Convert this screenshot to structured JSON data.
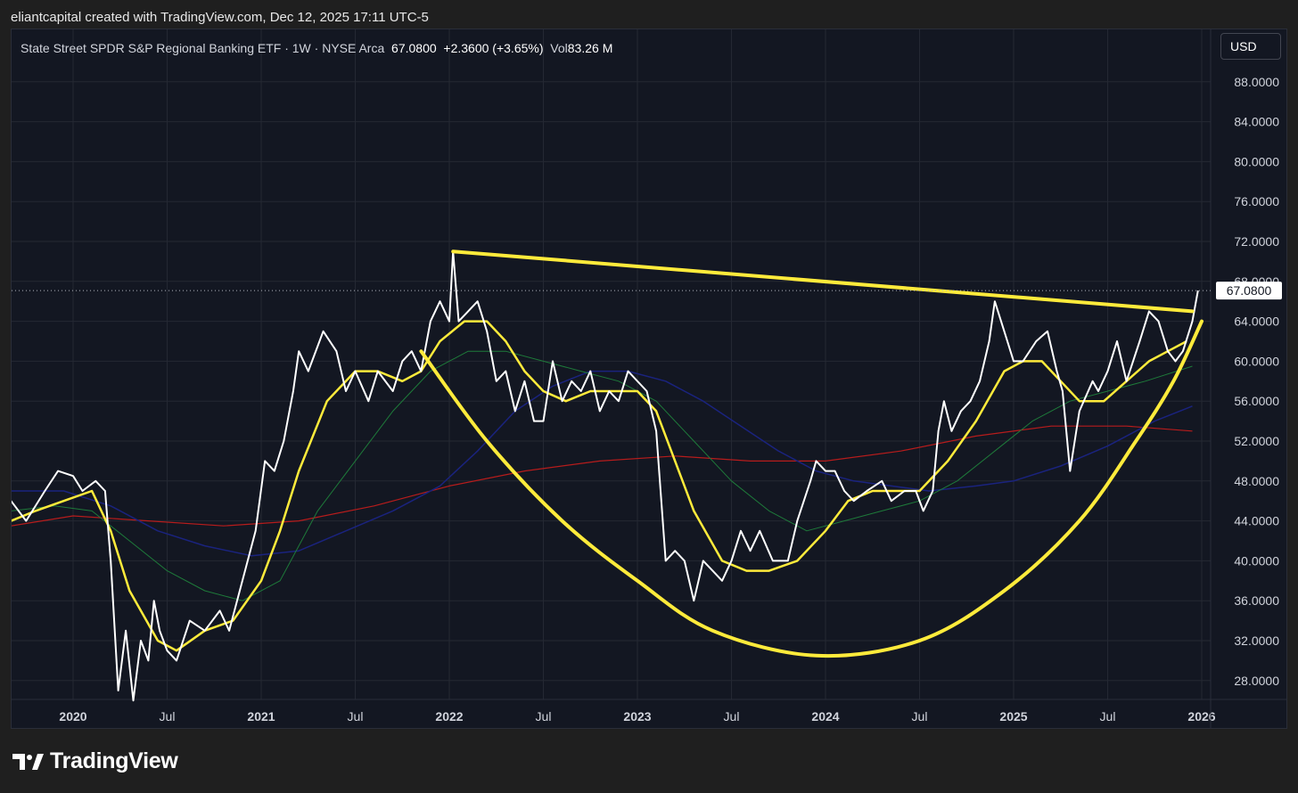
{
  "header": {
    "credit": "eliantcapital created with TradingView.com, Dec 12, 2025 17:11 UTC-5"
  },
  "legend": {
    "symbol": "State Street SPDR S&P Regional Banking ETF · 1W · NYSE Arca",
    "close": "67.0800",
    "change": "+2.3600 (+3.65%)",
    "vol_label": "Vol",
    "vol_value": "83.26 M"
  },
  "toolbar": {
    "currency": "USD"
  },
  "brand": {
    "name": "TradingView",
    "logo_icon": "tradingview-logo-icon"
  },
  "chart_data": {
    "type": "line",
    "title": "State Street SPDR S&P Regional Banking ETF · 1W · NYSE Arca",
    "current_price": 67.08,
    "current_price_label": "67.0800",
    "x_range": [
      "2019-09",
      "2025-12"
    ],
    "y_range": [
      25,
      90
    ],
    "y_ticks": [
      {
        "value": 28,
        "label": "28.0000"
      },
      {
        "value": 32,
        "label": "32.0000"
      },
      {
        "value": 36,
        "label": "36.0000"
      },
      {
        "value": 40,
        "label": "40.0000"
      },
      {
        "value": 44,
        "label": "44.0000"
      },
      {
        "value": 48,
        "label": "48.0000"
      },
      {
        "value": 52,
        "label": "52.0000"
      },
      {
        "value": 56,
        "label": "56.0000"
      },
      {
        "value": 60,
        "label": "60.0000"
      },
      {
        "value": 64,
        "label": "64.0000"
      },
      {
        "value": 68,
        "label": "68.0000"
      },
      {
        "value": 72,
        "label": "72.0000"
      },
      {
        "value": 76,
        "label": "76.0000"
      },
      {
        "value": 80,
        "label": "80.0000"
      },
      {
        "value": 84,
        "label": "84.0000"
      },
      {
        "value": 88,
        "label": "88.0000"
      }
    ],
    "x_ticks": [
      {
        "t": 2020.0,
        "label": "2020",
        "major": true
      },
      {
        "t": 2020.5,
        "label": "Jul",
        "major": false
      },
      {
        "t": 2021.0,
        "label": "2021",
        "major": true
      },
      {
        "t": 2021.5,
        "label": "Jul",
        "major": false
      },
      {
        "t": 2022.0,
        "label": "2022",
        "major": true
      },
      {
        "t": 2022.5,
        "label": "Jul",
        "major": false
      },
      {
        "t": 2023.0,
        "label": "2023",
        "major": true
      },
      {
        "t": 2023.5,
        "label": "Jul",
        "major": false
      },
      {
        "t": 2024.0,
        "label": "2024",
        "major": true
      },
      {
        "t": 2024.5,
        "label": "Jul",
        "major": false
      },
      {
        "t": 2025.0,
        "label": "2025",
        "major": true
      },
      {
        "t": 2025.5,
        "label": "Jul",
        "major": false
      },
      {
        "t": 2026.0,
        "label": "2026",
        "major": true
      }
    ],
    "grid": true,
    "series": [
      {
        "color": "#ffffff",
        "points": [
          [
            2019.67,
            46
          ],
          [
            2019.75,
            44
          ],
          [
            2019.85,
            47
          ],
          [
            2019.92,
            49
          ],
          [
            2020.0,
            48.5
          ],
          [
            2020.05,
            47
          ],
          [
            2020.12,
            48
          ],
          [
            2020.17,
            47
          ],
          [
            2020.2,
            40
          ],
          [
            2020.24,
            27
          ],
          [
            2020.28,
            33
          ],
          [
            2020.32,
            26
          ],
          [
            2020.36,
            32
          ],
          [
            2020.4,
            30
          ],
          [
            2020.43,
            36
          ],
          [
            2020.46,
            33
          ],
          [
            2020.5,
            31
          ],
          [
            2020.55,
            30
          ],
          [
            2020.62,
            34
          ],
          [
            2020.7,
            33
          ],
          [
            2020.78,
            35
          ],
          [
            2020.83,
            33
          ],
          [
            2020.9,
            38
          ],
          [
            2020.97,
            43
          ],
          [
            2021.02,
            50
          ],
          [
            2021.07,
            49
          ],
          [
            2021.12,
            52
          ],
          [
            2021.17,
            57
          ],
          [
            2021.2,
            61
          ],
          [
            2021.25,
            59
          ],
          [
            2021.33,
            63
          ],
          [
            2021.4,
            61
          ],
          [
            2021.45,
            57
          ],
          [
            2021.5,
            59
          ],
          [
            2021.57,
            56
          ],
          [
            2021.62,
            59
          ],
          [
            2021.7,
            57
          ],
          [
            2021.75,
            60
          ],
          [
            2021.8,
            61
          ],
          [
            2021.85,
            59
          ],
          [
            2021.9,
            64
          ],
          [
            2021.95,
            66
          ],
          [
            2022.0,
            64
          ],
          [
            2022.02,
            71
          ],
          [
            2022.05,
            64
          ],
          [
            2022.1,
            65
          ],
          [
            2022.15,
            66
          ],
          [
            2022.2,
            63
          ],
          [
            2022.25,
            58
          ],
          [
            2022.3,
            59
          ],
          [
            2022.35,
            55
          ],
          [
            2022.4,
            58
          ],
          [
            2022.45,
            54
          ],
          [
            2022.5,
            54
          ],
          [
            2022.55,
            60
          ],
          [
            2022.6,
            56
          ],
          [
            2022.65,
            58
          ],
          [
            2022.7,
            57
          ],
          [
            2022.75,
            59
          ],
          [
            2022.8,
            55
          ],
          [
            2022.85,
            57
          ],
          [
            2022.9,
            56
          ],
          [
            2022.95,
            59
          ],
          [
            2023.05,
            57
          ],
          [
            2023.1,
            53
          ],
          [
            2023.15,
            40
          ],
          [
            2023.2,
            41
          ],
          [
            2023.25,
            40
          ],
          [
            2023.3,
            36
          ],
          [
            2023.35,
            40
          ],
          [
            2023.4,
            39
          ],
          [
            2023.45,
            38
          ],
          [
            2023.5,
            40
          ],
          [
            2023.55,
            43
          ],
          [
            2023.6,
            41
          ],
          [
            2023.65,
            43
          ],
          [
            2023.72,
            40
          ],
          [
            2023.8,
            40
          ],
          [
            2023.85,
            44
          ],
          [
            2023.92,
            48
          ],
          [
            2023.95,
            50
          ],
          [
            2024.0,
            49
          ],
          [
            2024.05,
            49
          ],
          [
            2024.1,
            47
          ],
          [
            2024.15,
            46
          ],
          [
            2024.22,
            47
          ],
          [
            2024.3,
            48
          ],
          [
            2024.35,
            46
          ],
          [
            2024.42,
            47
          ],
          [
            2024.48,
            47
          ],
          [
            2024.52,
            45
          ],
          [
            2024.57,
            47
          ],
          [
            2024.6,
            53
          ],
          [
            2024.63,
            56
          ],
          [
            2024.67,
            53
          ],
          [
            2024.72,
            55
          ],
          [
            2024.77,
            56
          ],
          [
            2024.82,
            58
          ],
          [
            2024.87,
            62
          ],
          [
            2024.9,
            66
          ],
          [
            2024.95,
            63
          ],
          [
            2025.0,
            60
          ],
          [
            2025.05,
            60
          ],
          [
            2025.12,
            62
          ],
          [
            2025.18,
            63
          ],
          [
            2025.23,
            59
          ],
          [
            2025.26,
            57
          ],
          [
            2025.3,
            49
          ],
          [
            2025.35,
            55
          ],
          [
            2025.42,
            58
          ],
          [
            2025.45,
            57
          ],
          [
            2025.5,
            59
          ],
          [
            2025.55,
            62
          ],
          [
            2025.6,
            58
          ],
          [
            2025.67,
            62
          ],
          [
            2025.72,
            65
          ],
          [
            2025.77,
            64
          ],
          [
            2025.82,
            61
          ],
          [
            2025.86,
            60
          ],
          [
            2025.9,
            61
          ],
          [
            2025.95,
            64
          ],
          [
            2025.98,
            67.08
          ]
        ]
      },
      {
        "color": "#ffeb3b",
        "points": [
          [
            2019.67,
            44
          ],
          [
            2019.8,
            45
          ],
          [
            2019.95,
            46
          ],
          [
            2020.1,
            47
          ],
          [
            2020.2,
            43
          ],
          [
            2020.3,
            37
          ],
          [
            2020.45,
            32
          ],
          [
            2020.55,
            31
          ],
          [
            2020.7,
            33
          ],
          [
            2020.85,
            34
          ],
          [
            2021.0,
            38
          ],
          [
            2021.1,
            43
          ],
          [
            2021.2,
            49
          ],
          [
            2021.35,
            56
          ],
          [
            2021.5,
            59
          ],
          [
            2021.62,
            59
          ],
          [
            2021.75,
            58
          ],
          [
            2021.85,
            59
          ],
          [
            2021.95,
            62
          ],
          [
            2022.08,
            64
          ],
          [
            2022.2,
            64
          ],
          [
            2022.3,
            62
          ],
          [
            2022.4,
            59
          ],
          [
            2022.5,
            57
          ],
          [
            2022.62,
            56
          ],
          [
            2022.75,
            57
          ],
          [
            2022.88,
            57
          ],
          [
            2023.0,
            57
          ],
          [
            2023.1,
            55
          ],
          [
            2023.2,
            50
          ],
          [
            2023.3,
            45
          ],
          [
            2023.45,
            40
          ],
          [
            2023.58,
            39
          ],
          [
            2023.7,
            39
          ],
          [
            2023.85,
            40
          ],
          [
            2024.0,
            43
          ],
          [
            2024.12,
            46
          ],
          [
            2024.25,
            47
          ],
          [
            2024.38,
            47
          ],
          [
            2024.5,
            47
          ],
          [
            2024.65,
            50
          ],
          [
            2024.8,
            54
          ],
          [
            2024.95,
            59
          ],
          [
            2025.05,
            60
          ],
          [
            2025.15,
            60
          ],
          [
            2025.25,
            58
          ],
          [
            2025.35,
            56
          ],
          [
            2025.48,
            56
          ],
          [
            2025.6,
            58
          ],
          [
            2025.72,
            60
          ],
          [
            2025.82,
            61
          ],
          [
            2025.92,
            62
          ]
        ]
      },
      {
        "color": "#1e7a3a",
        "points": [
          [
            2019.67,
            45
          ],
          [
            2019.9,
            45.5
          ],
          [
            2020.1,
            45
          ],
          [
            2020.3,
            42
          ],
          [
            2020.5,
            39
          ],
          [
            2020.7,
            37
          ],
          [
            2020.9,
            36
          ],
          [
            2021.1,
            38
          ],
          [
            2021.3,
            45
          ],
          [
            2021.5,
            50
          ],
          [
            2021.7,
            55
          ],
          [
            2021.9,
            59
          ],
          [
            2022.1,
            61
          ],
          [
            2022.3,
            61
          ],
          [
            2022.5,
            60
          ],
          [
            2022.7,
            59
          ],
          [
            2022.9,
            58
          ],
          [
            2023.1,
            56
          ],
          [
            2023.3,
            52
          ],
          [
            2023.5,
            48
          ],
          [
            2023.7,
            45
          ],
          [
            2023.9,
            43
          ],
          [
            2024.1,
            44
          ],
          [
            2024.3,
            45
          ],
          [
            2024.5,
            46
          ],
          [
            2024.7,
            48
          ],
          [
            2024.9,
            51
          ],
          [
            2025.1,
            54
          ],
          [
            2025.3,
            56
          ],
          [
            2025.5,
            57
          ],
          [
            2025.7,
            58
          ],
          [
            2025.95,
            59.5
          ]
        ]
      },
      {
        "color": "#1a237e",
        "points": [
          [
            2019.67,
            47
          ],
          [
            2019.95,
            47
          ],
          [
            2020.2,
            45.5
          ],
          [
            2020.45,
            43
          ],
          [
            2020.7,
            41.5
          ],
          [
            2020.95,
            40.5
          ],
          [
            2021.2,
            41
          ],
          [
            2021.45,
            43
          ],
          [
            2021.7,
            45
          ],
          [
            2021.95,
            47.5
          ],
          [
            2022.15,
            51
          ],
          [
            2022.35,
            55
          ],
          [
            2022.55,
            57.5
          ],
          [
            2022.75,
            59
          ],
          [
            2022.95,
            59
          ],
          [
            2023.15,
            58
          ],
          [
            2023.35,
            56
          ],
          [
            2023.55,
            53.5
          ],
          [
            2023.75,
            51
          ],
          [
            2023.95,
            49
          ],
          [
            2024.15,
            48
          ],
          [
            2024.35,
            47.5
          ],
          [
            2024.55,
            47
          ],
          [
            2024.8,
            47.5
          ],
          [
            2025.0,
            48
          ],
          [
            2025.25,
            49.5
          ],
          [
            2025.5,
            51.5
          ],
          [
            2025.75,
            54
          ],
          [
            2025.95,
            55.5
          ]
        ]
      },
      {
        "color": "#b71c1c",
        "points": [
          [
            2019.67,
            43.5
          ],
          [
            2020.0,
            44.5
          ],
          [
            2020.4,
            44
          ],
          [
            2020.8,
            43.5
          ],
          [
            2021.2,
            44
          ],
          [
            2021.6,
            45.5
          ],
          [
            2022.0,
            47.5
          ],
          [
            2022.4,
            49
          ],
          [
            2022.8,
            50
          ],
          [
            2023.2,
            50.5
          ],
          [
            2023.6,
            50
          ],
          [
            2024.0,
            50
          ],
          [
            2024.4,
            51
          ],
          [
            2024.8,
            52.5
          ],
          [
            2025.2,
            53.5
          ],
          [
            2025.6,
            53.5
          ],
          [
            2025.95,
            53
          ]
        ]
      }
    ],
    "drawings": {
      "trendline": {
        "color": "#ffeb3b",
        "from": [
          2022.02,
          71
        ],
        "to": [
          2025.95,
          65
        ]
      },
      "cup_arc": {
        "color": "#ffeb3b",
        "points": [
          [
            2021.85,
            61
          ],
          [
            2022.2,
            52
          ],
          [
            2022.6,
            44
          ],
          [
            2023.0,
            38
          ],
          [
            2023.4,
            33
          ],
          [
            2023.95,
            30.5
          ],
          [
            2024.5,
            32
          ],
          [
            2024.95,
            37
          ],
          [
            2025.35,
            44
          ],
          [
            2025.65,
            52
          ],
          [
            2025.85,
            58
          ],
          [
            2026.0,
            64
          ]
        ]
      }
    }
  }
}
